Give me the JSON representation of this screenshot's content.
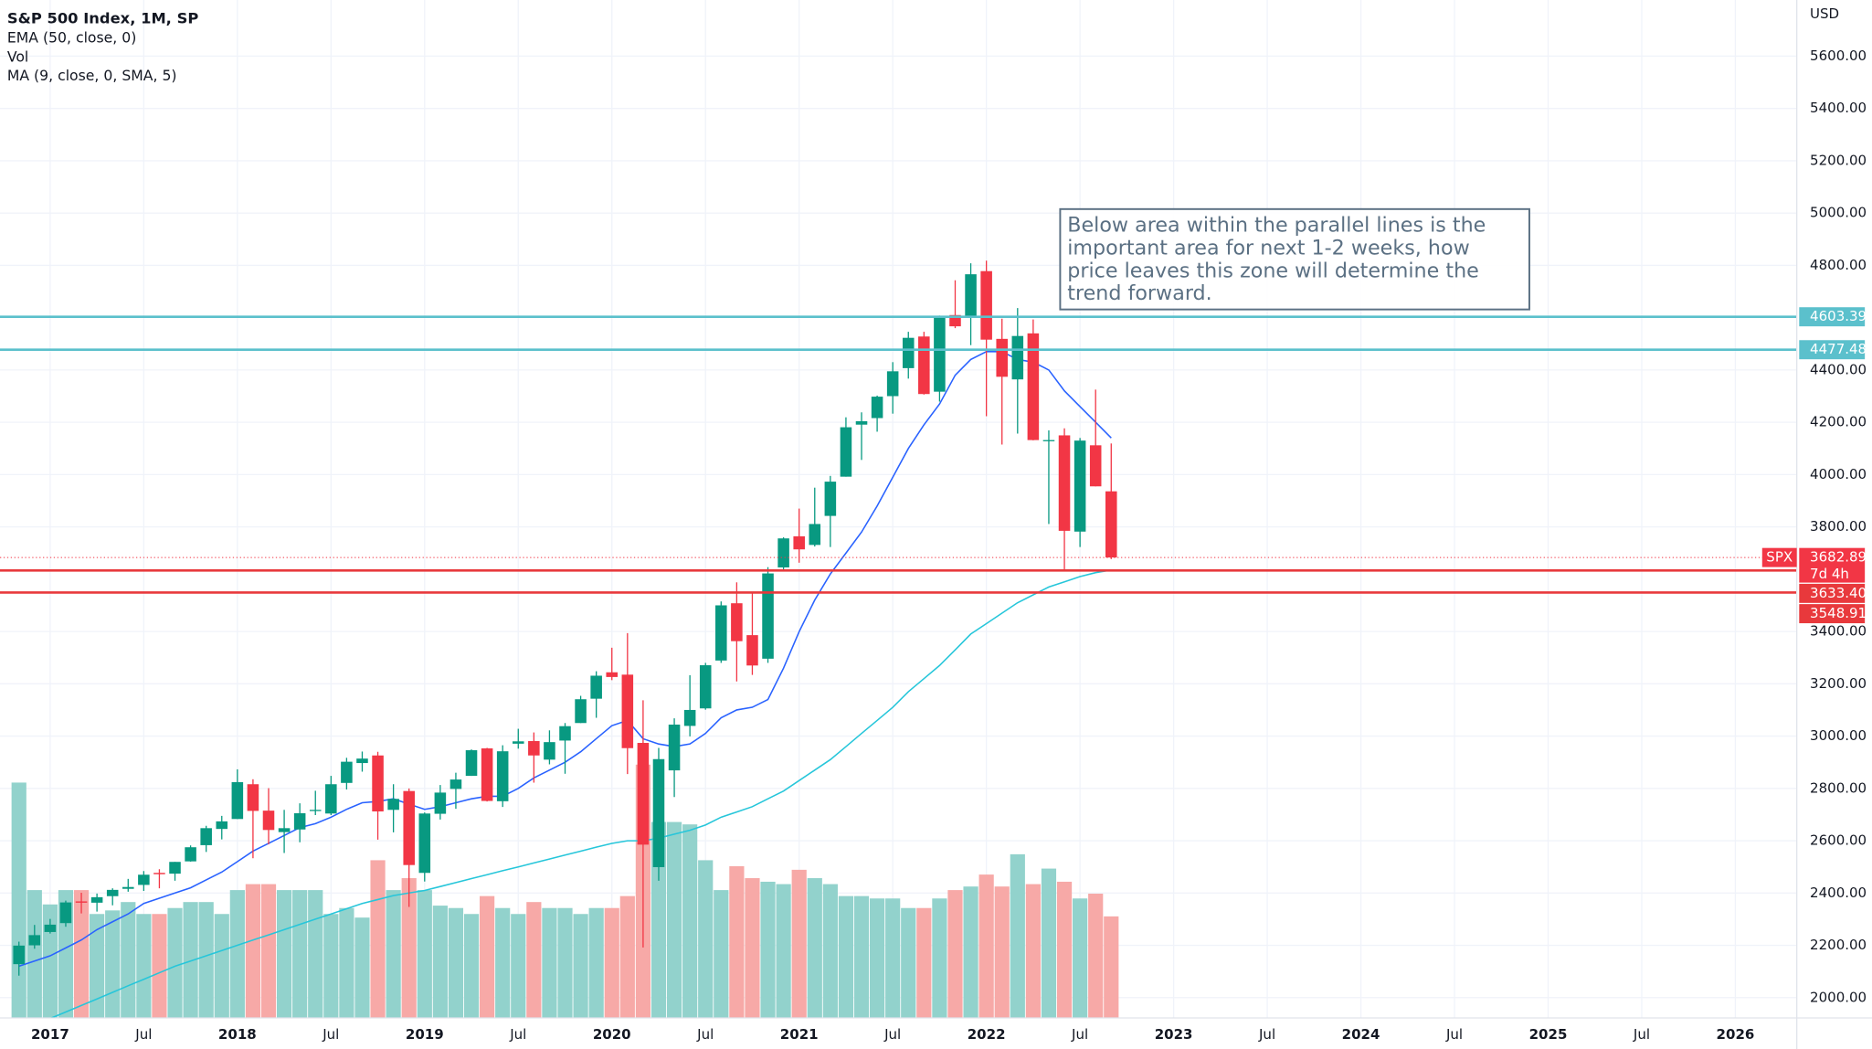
{
  "chart_data": {
    "type": "candlestick",
    "title": "S&P 500 Index, 1M, SP",
    "y_unit": "USD",
    "x": [
      "2016-11",
      "2016-12",
      "2017-01",
      "2017-02",
      "2017-03",
      "2017-04",
      "2017-05",
      "2017-06",
      "2017-07",
      "2017-08",
      "2017-09",
      "2017-10",
      "2017-11",
      "2017-12",
      "2018-01",
      "2018-02",
      "2018-03",
      "2018-04",
      "2018-05",
      "2018-06",
      "2018-07",
      "2018-08",
      "2018-09",
      "2018-10",
      "2018-11",
      "2018-12",
      "2019-01",
      "2019-02",
      "2019-03",
      "2019-04",
      "2019-05",
      "2019-06",
      "2019-07",
      "2019-08",
      "2019-09",
      "2019-10",
      "2019-11",
      "2019-12",
      "2020-01",
      "2020-02",
      "2020-03",
      "2020-04",
      "2020-05",
      "2020-06",
      "2020-07",
      "2020-08",
      "2020-09",
      "2020-10",
      "2020-11",
      "2020-12",
      "2021-01",
      "2021-02",
      "2021-03",
      "2021-04",
      "2021-05",
      "2021-06",
      "2021-07",
      "2021-08",
      "2021-09",
      "2021-10",
      "2021-11",
      "2021-12",
      "2022-01",
      "2022-02",
      "2022-03",
      "2022-04",
      "2022-05",
      "2022-06",
      "2022-07",
      "2022-08",
      "2022-09"
    ],
    "candles": {
      "up_color": "#089981",
      "down_color": "#f23645",
      "open": [
        2128,
        2200,
        2251,
        2285,
        2368,
        2363,
        2388,
        2416,
        2431,
        2477,
        2474,
        2521,
        2583,
        2645,
        2683,
        2816,
        2715,
        2633,
        2643,
        2718,
        2704,
        2821,
        2897,
        2926,
        2718,
        2790,
        2477,
        2703,
        2798,
        2848,
        2953,
        2751,
        2971,
        2981,
        2910,
        2983,
        3050,
        3143,
        3244,
        3235,
        2974,
        2499,
        2869,
        3039,
        3106,
        3289,
        3508,
        3386,
        3296,
        3645,
        3764,
        3731,
        3842,
        3992,
        4191,
        4216,
        4300,
        4407,
        4528,
        4317,
        4610,
        4602,
        4778,
        4519,
        4364,
        4540,
        4130,
        4150,
        3782,
        4112,
        3936
      ],
      "high": [
        2214,
        2278,
        2301,
        2371,
        2401,
        2398,
        2418,
        2454,
        2484,
        2491,
        2519,
        2582,
        2657,
        2695,
        2873,
        2835,
        2801,
        2718,
        2743,
        2791,
        2848,
        2917,
        2941,
        2940,
        2816,
        2800,
        2708,
        2813,
        2860,
        2949,
        2955,
        2965,
        3028,
        3014,
        3022,
        3050,
        3154,
        3248,
        3338,
        3394,
        3137,
        2955,
        3068,
        3233,
        3280,
        3515,
        3588,
        3550,
        3646,
        3760,
        3870,
        3950,
        3995,
        4219,
        4238,
        4302,
        4430,
        4546,
        4546,
        4608,
        4743,
        4808,
        4818,
        4596,
        4637,
        4593,
        4169,
        4177,
        4140,
        4325,
        4119
      ],
      "low": [
        2084,
        2187,
        2245,
        2271,
        2322,
        2329,
        2353,
        2405,
        2408,
        2418,
        2447,
        2520,
        2557,
        2605,
        2683,
        2533,
        2586,
        2553,
        2594,
        2698,
        2698,
        2796,
        2864,
        2604,
        2632,
        2347,
        2444,
        2681,
        2722,
        2848,
        2750,
        2729,
        2952,
        2822,
        2892,
        2856,
        3050,
        3070,
        3214,
        2855,
        2192,
        2447,
        2767,
        2999,
        3101,
        3280,
        3209,
        3234,
        3280,
        3633,
        3663,
        3725,
        3723,
        3992,
        4056,
        4164,
        4233,
        4367,
        4306,
        4279,
        4560,
        4495,
        4223,
        4115,
        4157,
        4131,
        3811,
        3637,
        3723,
        3955,
        3677
      ],
      "close": [
        2199,
        2239,
        2279,
        2364,
        2363,
        2384,
        2412,
        2423,
        2470,
        2472,
        2519,
        2575,
        2648,
        2674,
        2824,
        2714,
        2641,
        2648,
        2705,
        2718,
        2816,
        2902,
        2914,
        2712,
        2760,
        2507,
        2704,
        2784,
        2834,
        2946,
        2752,
        2942,
        2980,
        2926,
        2977,
        3038,
        3141,
        3231,
        3226,
        2954,
        2585,
        2912,
        3044,
        3100,
        3271,
        3500,
        3363,
        3270,
        3622,
        3756,
        3714,
        3811,
        3973,
        4181,
        4204,
        4298,
        4395,
        4523,
        4308,
        4605,
        4567,
        4766,
        4516,
        4374,
        4530,
        4132,
        4132,
        3785,
        4130,
        3955,
        3683
      ]
    },
    "series": [
      {
        "name": "EMA (50, close, 0)",
        "color": "#26c6da",
        "values": [
          1880,
          1900,
          1920,
          1945,
          1970,
          1995,
          2020,
          2045,
          2070,
          2095,
          2120,
          2140,
          2160,
          2180,
          2200,
          2220,
          2240,
          2260,
          2280,
          2300,
          2320,
          2340,
          2360,
          2375,
          2390,
          2400,
          2410,
          2425,
          2440,
          2455,
          2470,
          2485,
          2500,
          2515,
          2530,
          2545,
          2560,
          2575,
          2590,
          2600,
          2600,
          2610,
          2625,
          2640,
          2660,
          2690,
          2710,
          2730,
          2760,
          2790,
          2830,
          2870,
          2910,
          2960,
          3010,
          3060,
          3110,
          3170,
          3220,
          3270,
          3330,
          3390,
          3430,
          3470,
          3510,
          3540,
          3570,
          3590,
          3610,
          3625,
          3635
        ]
      },
      {
        "name": "Vol",
        "up_color": "#92d2cc",
        "down_color": "#f7a9a7",
        "values": [
          197,
          107,
          95,
          107,
          107,
          87,
          90,
          97,
          87,
          87,
          92,
          97,
          97,
          87,
          107,
          112,
          112,
          107,
          107,
          107,
          87,
          92,
          84,
          132,
          107,
          117,
          107,
          94,
          92,
          87,
          102,
          92,
          87,
          97,
          92,
          92,
          87,
          92,
          92,
          102,
          212,
          164,
          164,
          162,
          132,
          107,
          127,
          117,
          114,
          112,
          124,
          117,
          112,
          102,
          102,
          100,
          100,
          92,
          92,
          100,
          107,
          110,
          120,
          110,
          137,
          112,
          125,
          114,
          100,
          104,
          85
        ]
      },
      {
        "name": "MA (9, close, 0, SMA, 5)",
        "color": "#2962ff",
        "values": [
          2120,
          2140,
          2160,
          2190,
          2220,
          2260,
          2290,
          2320,
          2360,
          2380,
          2400,
          2420,
          2450,
          2480,
          2520,
          2560,
          2590,
          2620,
          2650,
          2665,
          2690,
          2720,
          2745,
          2750,
          2760,
          2740,
          2720,
          2730,
          2745,
          2760,
          2770,
          2770,
          2800,
          2840,
          2870,
          2900,
          2940,
          2990,
          3040,
          3060,
          2990,
          2970,
          2960,
          2970,
          3010,
          3070,
          3100,
          3110,
          3140,
          3260,
          3400,
          3520,
          3620,
          3700,
          3780,
          3880,
          3990,
          4100,
          4190,
          4270,
          4380,
          4440,
          4470,
          4470,
          4440,
          4430,
          4400,
          4320,
          4260,
          4200,
          4140
        ]
      }
    ],
    "ylim": [
      1950,
      5700
    ],
    "vlim": [
      0,
      250
    ],
    "yticks": [
      {
        "value": 2000,
        "label": "2000.00"
      },
      {
        "value": 2200,
        "label": "2200.00"
      },
      {
        "value": 2400,
        "label": "2400.00"
      },
      {
        "value": 2600,
        "label": "2600.00"
      },
      {
        "value": 2800,
        "label": "2800.00"
      },
      {
        "value": 3000,
        "label": "3000.00"
      },
      {
        "value": 3200,
        "label": "3200.00"
      },
      {
        "value": 3400,
        "label": "3400.00"
      },
      {
        "value": 3800,
        "label": "3800.00"
      },
      {
        "value": 4000,
        "label": "4000.00"
      },
      {
        "value": 4200,
        "label": "4200.00"
      },
      {
        "value": 4400,
        "label": "4400.00"
      },
      {
        "value": 4800,
        "label": "4800.00"
      },
      {
        "value": 5000,
        "label": "5000.00"
      },
      {
        "value": 5200,
        "label": "5200.00"
      },
      {
        "value": 5400,
        "label": "5400.00"
      },
      {
        "value": 5600,
        "label": "5600.00"
      }
    ],
    "xticks": [
      {
        "value": "2017-01",
        "label": "2017"
      },
      {
        "value": "2017-07",
        "label": "Jul"
      },
      {
        "value": "2018-01",
        "label": "2018"
      },
      {
        "value": "2018-07",
        "label": "Jul"
      },
      {
        "value": "2019-01",
        "label": "2019"
      },
      {
        "value": "2019-07",
        "label": "Jul"
      },
      {
        "value": "2020-01",
        "label": "2020"
      },
      {
        "value": "2020-07",
        "label": "Jul"
      },
      {
        "value": "2021-01",
        "label": "2021"
      },
      {
        "value": "2021-07",
        "label": "Jul"
      },
      {
        "value": "2022-01",
        "label": "2022"
      },
      {
        "value": "2022-07",
        "label": "Jul"
      },
      {
        "value": "2023-01",
        "label": "2023"
      },
      {
        "value": "2023-07",
        "label": "Jul"
      },
      {
        "value": "2024-01",
        "label": "2024"
      },
      {
        "value": "2024-07",
        "label": "Jul"
      },
      {
        "value": "2025-01",
        "label": "2025"
      },
      {
        "value": "2025-07",
        "label": "Jul"
      },
      {
        "value": "2026-01",
        "label": "2026"
      }
    ],
    "grid": true,
    "levels": [
      {
        "value": 4603.39,
        "label": "4603.39",
        "color": "#5bc0cc"
      },
      {
        "value": 4477.48,
        "label": "4477.48",
        "color": "#5bc0cc"
      },
      {
        "value": 3633.4,
        "label": "3633.40",
        "color": "#e8393c"
      },
      {
        "value": 3548.91,
        "label": "3548.91",
        "color": "#e8393c"
      }
    ],
    "last_price": {
      "value": 3682.89,
      "label": "3682.89",
      "symbol": "SPX",
      "countdown": "7d 4h",
      "color": "#f23645"
    },
    "annotation": [
      "Below area within the parallel lines is the",
      "important area for next 1-2 weeks, how",
      "price leaves this zone will determine the",
      "trend forward."
    ]
  }
}
